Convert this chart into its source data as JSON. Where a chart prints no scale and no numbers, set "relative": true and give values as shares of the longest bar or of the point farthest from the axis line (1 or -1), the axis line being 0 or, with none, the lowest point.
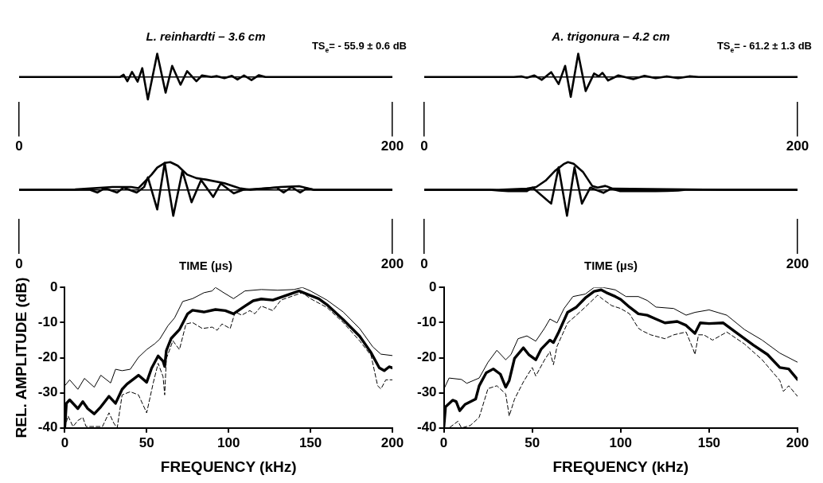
{
  "chart_data": [
    {
      "type": "line",
      "title": "L. reinhardti – 3.6 cm",
      "annotations": [
        "TS$_{e}$= - 55.9 ± 0.6 dB"
      ],
      "relative": true,
      "xlim": [
        0,
        200
      ],
      "xticks": [
        0,
        200
      ],
      "tick_labels": "x",
      "grid": false,
      "marker": "none",
      "line_style": "solid",
      "series": [
        {
          "color": "#000000",
          "x": [
            0,
            54,
            56,
            58,
            60.5,
            63.5,
            66,
            69,
            74,
            78.5,
            82,
            86.5,
            90,
            95,
            98,
            103,
            106,
            110,
            114,
            117,
            120.5,
            124.5,
            128.5,
            132,
            200
          ],
          "values": [
            0,
            0,
            0.1,
            -0.18,
            0.22,
            -0.2,
            0.38,
            -0.96,
            1,
            -0.67,
            0.48,
            -0.33,
            0.25,
            -0.18,
            0.07,
            0,
            0.04,
            -0.05,
            0.05,
            -0.11,
            0.07,
            -0.13,
            0.08,
            0,
            0
          ]
        }
      ]
    },
    {
      "type": "line",
      "title": "A. trigonura – 4.2 cm",
      "annotations": [
        "TS$_{e}$= - 61.2 ± 1.3 dB"
      ],
      "relative": true,
      "xlim": [
        0,
        200
      ],
      "xticks": [
        0,
        200
      ],
      "tick_labels": "x",
      "grid": false,
      "marker": "none",
      "line_style": "solid",
      "series": [
        {
          "color": "#000000",
          "x": [
            0,
            48,
            52,
            55,
            59,
            63,
            68,
            72,
            75.5,
            78.5,
            82.5,
            86.5,
            91,
            93.5,
            95.5,
            98.5,
            104,
            112,
            118,
            124,
            130,
            136,
            142,
            147,
            200
          ],
          "values": [
            0,
            0,
            0.03,
            -0.03,
            0.07,
            -0.12,
            0.21,
            -0.3,
            0.48,
            -0.85,
            1,
            -0.6,
            0.15,
            0.03,
            0.18,
            -0.15,
            0.07,
            -0.09,
            0.05,
            -0.05,
            0.03,
            -0.05,
            0.03,
            0,
            0
          ]
        }
      ]
    },
    {
      "type": "line",
      "xlabel": "TIME (µs)",
      "relative": true,
      "xlim": [
        0,
        200
      ],
      "xticks": [
        0,
        200
      ],
      "tick_labels": "x",
      "grid": false,
      "marker": "none",
      "line_style": "solid",
      "series": [
        {
          "color": "#000000",
          "x": [
            0,
            38,
            42,
            46,
            52.5,
            56,
            63,
            67,
            69,
            74,
            78,
            82.6,
            87.5,
            92.4,
            97.5,
            104,
            108,
            115,
            120,
            138,
            141.7,
            146,
            150.6,
            154,
            158,
            200
          ],
          "values": [
            0,
            0,
            -0.1,
            0.06,
            -0.1,
            0.08,
            -0.1,
            0.1,
            0.45,
            -0.71,
            0.97,
            -0.94,
            0.68,
            -0.45,
            0.35,
            -0.26,
            0.23,
            -0.13,
            0,
            0.08,
            -0.1,
            0.1,
            -0.1,
            0.05,
            0,
            0
          ]
        },
        {
          "color": "#000000",
          "x": [
            0,
            30,
            50,
            60,
            64,
            71,
            74,
            78,
            81,
            85,
            90,
            95,
            100,
            110,
            118,
            124,
            140,
            150,
            158,
            200
          ],
          "values": [
            0,
            0.01,
            0.1,
            0.1,
            0.06,
            0.55,
            0.8,
            0.97,
            1,
            0.87,
            0.55,
            0.42,
            0.37,
            0.24,
            0.06,
            0,
            0.1,
            0.13,
            0,
            0
          ]
        }
      ]
    },
    {
      "type": "line",
      "xlabel": "TIME (µs)",
      "relative": true,
      "xlim": [
        0,
        200
      ],
      "xticks": [
        0,
        200
      ],
      "tick_labels": "x",
      "grid": false,
      "marker": "none",
      "line_style": "solid",
      "series": [
        {
          "color": "#000000",
          "x": [
            0,
            35,
            40,
            45,
            50,
            55,
            58,
            68,
            72,
            76.5,
            80.5,
            84.5,
            89,
            96,
            100,
            105,
            111,
            118,
            124,
            130,
            136,
            140,
            200
          ],
          "values": [
            0,
            0,
            -0.03,
            -0.05,
            -0.05,
            -0.05,
            0.08,
            -0.5,
            0.81,
            -0.94,
            0.81,
            -0.5,
            0.08,
            -0.11,
            0.04,
            -0.05,
            -0.05,
            -0.05,
            -0.05,
            -0.04,
            -0.03,
            0,
            0
          ]
        },
        {
          "color": "#000000",
          "x": [
            0,
            40,
            55,
            60,
            65,
            70,
            75,
            77,
            80,
            85,
            90,
            93,
            97,
            101,
            130,
            160,
            200
          ],
          "values": [
            0,
            0,
            0.04,
            0.1,
            0.33,
            0.68,
            0.94,
            1,
            0.94,
            0.65,
            0.14,
            0.08,
            0.14,
            0.04,
            0.02,
            0,
            0
          ]
        }
      ]
    },
    {
      "type": "line",
      "xlabel": "FREQUENCY (kHz)",
      "ylabel": "REL. AMPLITUDE (dB)",
      "xlim": [
        0,
        200
      ],
      "xticks": [
        0,
        50,
        100,
        150,
        200
      ],
      "ylim": [
        -40,
        0
      ],
      "yticks": [
        0,
        -10,
        -20,
        -30,
        -40
      ],
      "grid": false,
      "marker": "none",
      "series": [
        {
          "color": "#000000",
          "line_style": "solid",
          "x": [
            0,
            1,
            3,
            8,
            11,
            14,
            18,
            22,
            27,
            31,
            35,
            38,
            45,
            50,
            53,
            57,
            60,
            61,
            62,
            65,
            70,
            75,
            78,
            85,
            92,
            98,
            103,
            110,
            115,
            120,
            127,
            135,
            143,
            150,
            155,
            160,
            170,
            180,
            187,
            192,
            195,
            198,
            200
          ],
          "values": [
            -40,
            -33,
            -32,
            -34.5,
            -32.5,
            -34.5,
            -36,
            -34,
            -31,
            -33,
            -29,
            -27.5,
            -25,
            -27,
            -23,
            -19.5,
            -21,
            -22.5,
            -18,
            -14.5,
            -12,
            -7.5,
            -6.5,
            -7,
            -6.3,
            -6.6,
            -7.5,
            -5.3,
            -3.8,
            -3.3,
            -3.6,
            -2.3,
            -1,
            -2.3,
            -3.2,
            -4.9,
            -9.2,
            -13.9,
            -18.6,
            -22.9,
            -23.7,
            -22.6,
            -22.9
          ]
        },
        {
          "color": "#000000",
          "line_style": "solid",
          "x": [
            0,
            3,
            8,
            12,
            18,
            22,
            28,
            31,
            35,
            40,
            45,
            50,
            55,
            58,
            63,
            67,
            72,
            78,
            85,
            90,
            92,
            97,
            103,
            110,
            120,
            130,
            140,
            145,
            150,
            160,
            170,
            180,
            188,
            193,
            200
          ],
          "values": [
            -28,
            -26.3,
            -29,
            -25.9,
            -28.4,
            -25,
            -27.2,
            -23.3,
            -23.7,
            -23.3,
            -19.9,
            -17.7,
            -16,
            -14.7,
            -10.9,
            -8.7,
            -4,
            -3.2,
            -1.5,
            -1,
            0,
            -1.5,
            -3.2,
            -1,
            -0.6,
            -0.8,
            -0.6,
            0,
            -1,
            -3.6,
            -7,
            -11.7,
            -16.9,
            -19,
            -19.4
          ]
        },
        {
          "color": "#000000",
          "line_style": "dashed",
          "x": [
            0,
            2,
            5,
            8,
            11,
            13,
            23,
            27,
            30,
            32,
            35,
            40,
            45,
            50,
            54,
            57,
            60,
            61,
            62,
            66,
            70,
            74,
            78,
            84,
            90,
            93,
            96,
            101,
            104,
            108,
            113,
            116,
            120,
            127,
            132,
            140,
            145,
            150,
            160,
            170,
            180,
            187,
            191,
            193,
            196,
            200
          ],
          "values": [
            -40,
            -36.6,
            -39.6,
            -37.9,
            -37,
            -39.6,
            -39.6,
            -35.7,
            -38.7,
            -40,
            -30.6,
            -29.7,
            -30.6,
            -35.7,
            -27.2,
            -21.6,
            -25.4,
            -30.6,
            -20.3,
            -15.2,
            -17.7,
            -10.4,
            -10,
            -11.7,
            -11.3,
            -12.2,
            -10.4,
            -11.7,
            -7,
            -7.9,
            -6.6,
            -7.5,
            -5.3,
            -6.6,
            -3.6,
            -2.3,
            -1.5,
            -3.2,
            -5.7,
            -10,
            -15.2,
            -19.4,
            -28,
            -28.9,
            -26.3,
            -26.3
          ]
        }
      ]
    },
    {
      "type": "line",
      "xlabel": "FREQUENCY (kHz)",
      "xlim": [
        0,
        200
      ],
      "xticks": [
        0,
        50,
        100,
        150,
        200
      ],
      "ylim": [
        -40,
        0
      ],
      "yticks": [
        0,
        -10,
        -20,
        -30,
        -40
      ],
      "grid": false,
      "marker": "none",
      "series": [
        {
          "color": "#000000",
          "line_style": "solid",
          "x": [
            0,
            1,
            5,
            7,
            9,
            12,
            18,
            20,
            24,
            28,
            32,
            35,
            37,
            40,
            45,
            48,
            52,
            55,
            60,
            62,
            65,
            70,
            75,
            80,
            85,
            89,
            92,
            97,
            100,
            105,
            110,
            115,
            120,
            125,
            132,
            137,
            142,
            145,
            150,
            158,
            165,
            175,
            183,
            190,
            195,
            200
          ],
          "values": [
            -40,
            -34,
            -32.1,
            -32.5,
            -35.1,
            -33.3,
            -31.8,
            -28,
            -24.3,
            -23.2,
            -24.7,
            -28.4,
            -26.5,
            -20.2,
            -17.2,
            -19.1,
            -20.6,
            -17.6,
            -15,
            -15.7,
            -12.7,
            -7.1,
            -5.6,
            -3,
            -1.1,
            -0.7,
            -1.5,
            -2.6,
            -3.4,
            -5.6,
            -7.5,
            -7.9,
            -9,
            -10.1,
            -9.7,
            -10.8,
            -13.1,
            -10.1,
            -10.3,
            -10.1,
            -12.7,
            -16.4,
            -19.1,
            -22.8,
            -23.2,
            -26.2
          ]
        },
        {
          "color": "#000000",
          "line_style": "solid",
          "x": [
            0,
            3,
            10,
            13,
            20,
            25,
            30,
            35,
            38,
            42,
            47,
            52,
            57,
            60,
            64,
            68,
            73,
            80,
            85,
            90,
            97,
            103,
            110,
            115,
            120,
            130,
            137,
            142,
            150,
            160,
            170,
            180,
            190,
            200
          ],
          "values": [
            -29,
            -25.8,
            -26.2,
            -27.3,
            -25.8,
            -21.3,
            -17.9,
            -20.6,
            -19.1,
            -14.6,
            -13.8,
            -15.3,
            -11.6,
            -9,
            -10.1,
            -6,
            -2.6,
            -1.9,
            0,
            0,
            -0.7,
            -2.6,
            -2.6,
            -3.7,
            -5.6,
            -6,
            -7.9,
            -7.1,
            -6.4,
            -7.9,
            -12,
            -15,
            -18.7,
            -21.3
          ]
        },
        {
          "color": "#000000",
          "line_style": "dashed",
          "x": [
            0,
            3,
            8,
            10,
            15,
            20,
            25,
            30,
            35,
            37,
            40,
            45,
            50,
            52,
            57,
            60,
            62,
            64,
            70,
            75,
            80,
            87,
            90,
            95,
            100,
            105,
            110,
            112,
            117,
            125,
            130,
            137,
            141,
            142,
            144,
            147,
            152,
            160,
            170,
            180,
            190,
            192,
            195,
            200
          ],
          "values": [
            -40,
            -40,
            -38.1,
            -40,
            -39.3,
            -37,
            -28.8,
            -28,
            -30.3,
            -36.6,
            -31.8,
            -26.9,
            -22.8,
            -25.2,
            -20.6,
            -18.3,
            -22,
            -16.8,
            -10.1,
            -7.9,
            -5.6,
            -2.2,
            -3.4,
            -5.2,
            -6,
            -7.5,
            -11.6,
            -12.3,
            -13.5,
            -14.6,
            -13.5,
            -12.7,
            -17.6,
            -19.1,
            -13.5,
            -13.5,
            -15,
            -12.7,
            -16.1,
            -20.6,
            -26.5,
            -29.6,
            -28,
            -31
          ]
        }
      ]
    }
  ]
}
